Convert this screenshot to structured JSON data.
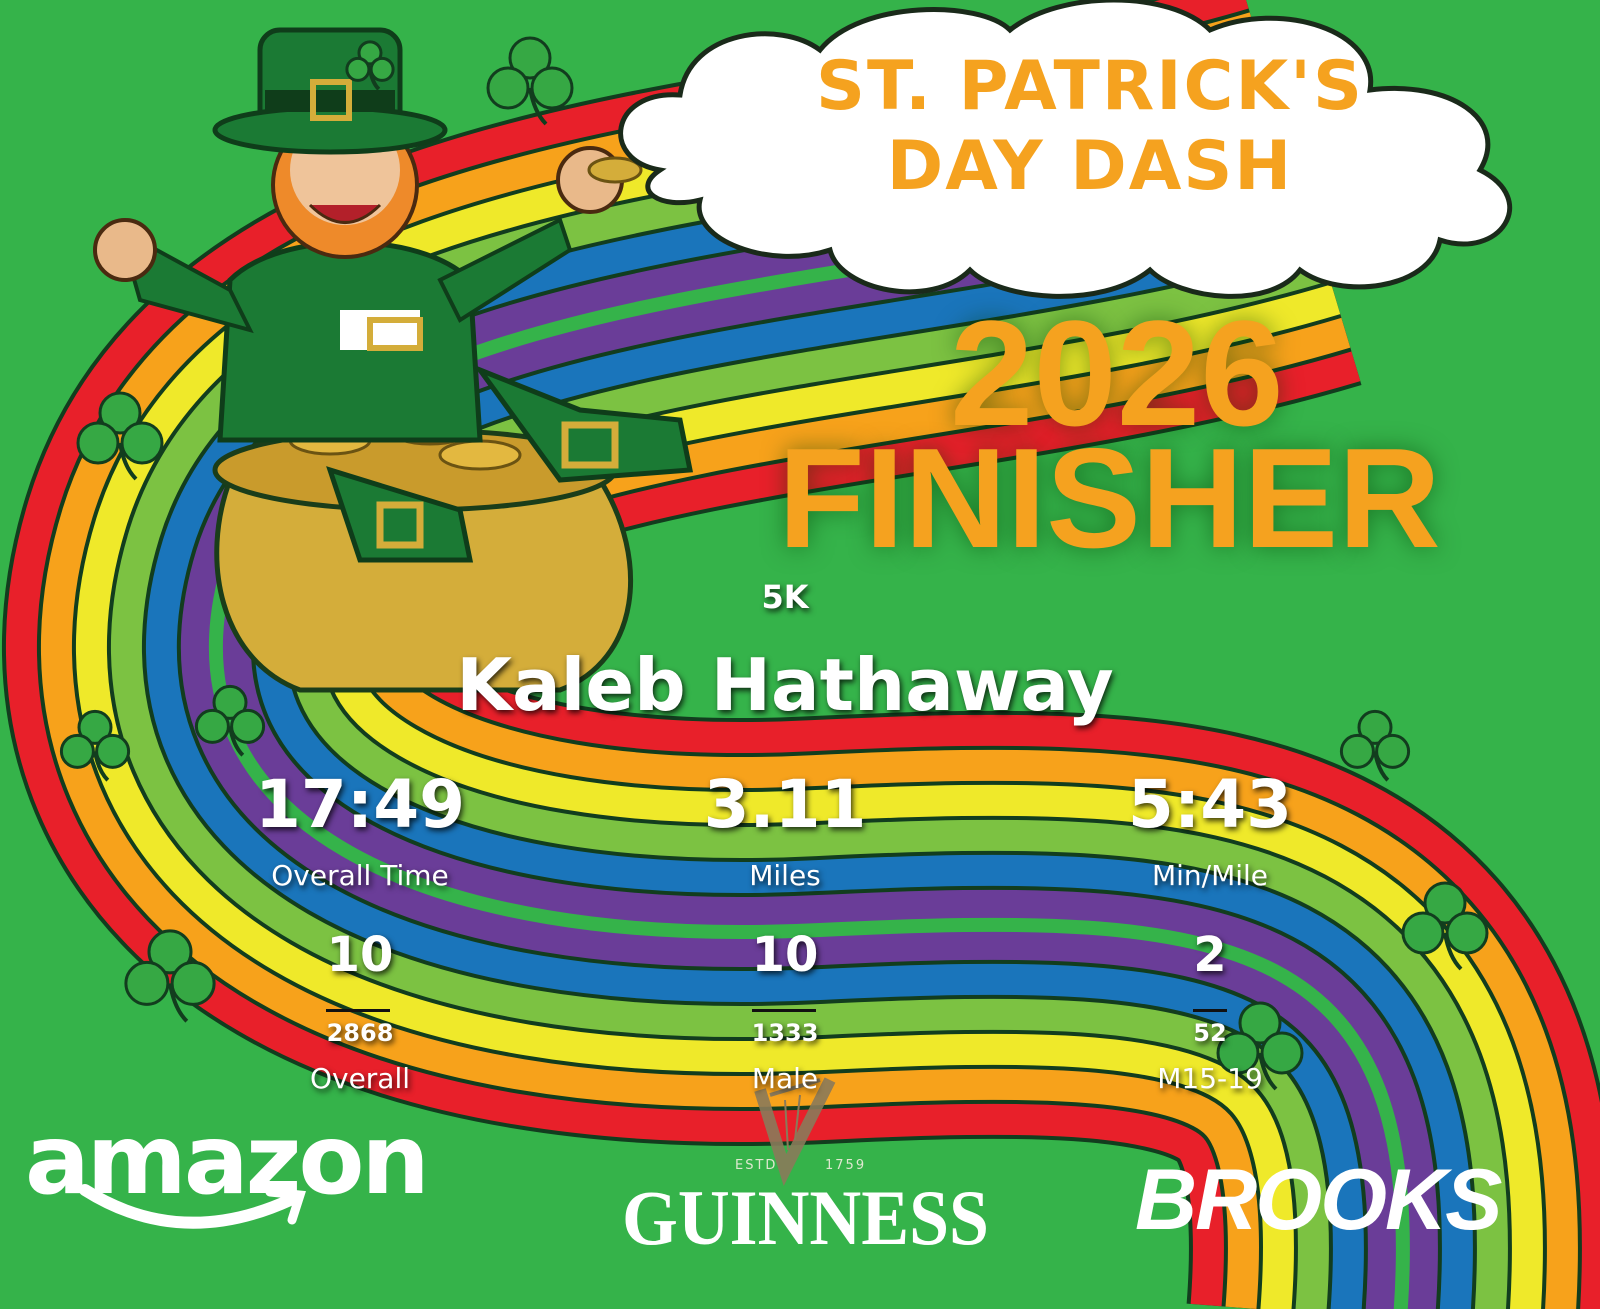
{
  "event": {
    "title_line1": "ST. PATRICK'S",
    "title_line2": "DAY DASH",
    "year": "2026",
    "finisher_label": "FINISHER",
    "race": "5K"
  },
  "runner": {
    "name": "Kaleb Hathaway"
  },
  "stats": [
    {
      "value": "17:49",
      "label": "Overall Time"
    },
    {
      "value": "3.11",
      "label": "Miles"
    },
    {
      "value": "5:43",
      "label": "Min/Mile"
    }
  ],
  "placements": [
    {
      "place": "10",
      "total": "2868",
      "label": "Overall"
    },
    {
      "place": "10",
      "total": "1333",
      "label": "Male"
    },
    {
      "place": "2",
      "total": "52",
      "label": "M15-19"
    }
  ],
  "sponsors": {
    "amazon": "amazon",
    "guinness": "GUINNESS",
    "guinness_estd": "ESTD",
    "guinness_year": "1759",
    "brooks": "BROOKS"
  },
  "colors": {
    "background": "#35b34a",
    "accent": "#f5a21f",
    "rainbow": [
      "#e8202a",
      "#f7a21b",
      "#efe92a",
      "#7cc242",
      "#1a75bb",
      "#6a3d98"
    ]
  }
}
